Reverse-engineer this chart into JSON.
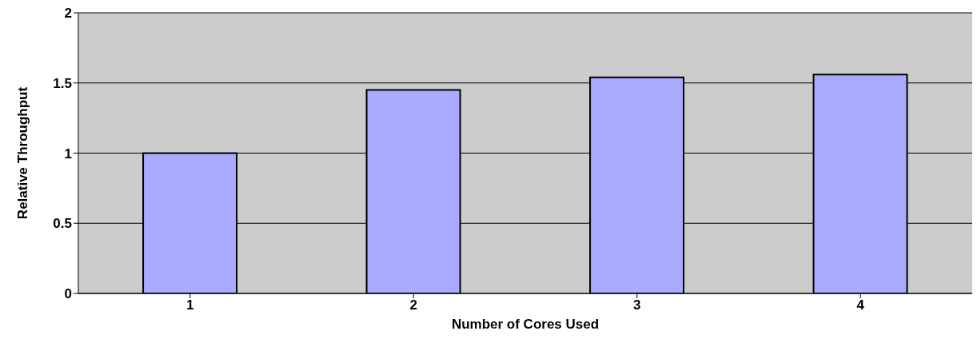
{
  "chart_data": {
    "type": "bar",
    "xlabel": "Number of Cores Used",
    "ylabel": "Relative Throughput",
    "categories": [
      "1",
      "2",
      "3",
      "4"
    ],
    "values": [
      1,
      1.45,
      1.54,
      1.56
    ],
    "color": "#aaaaff",
    "ylim": [
      0,
      2
    ],
    "yticks": [
      0,
      0.5,
      1,
      1.5,
      2
    ],
    "grid": "y"
  }
}
